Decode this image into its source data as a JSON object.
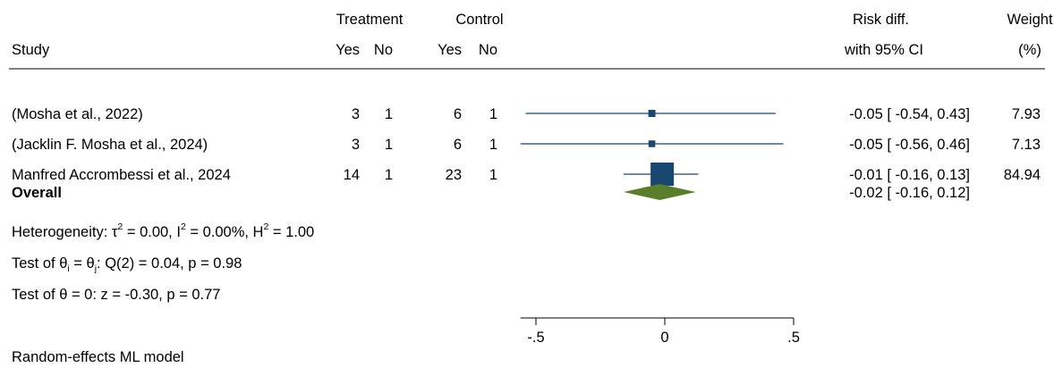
{
  "header": {
    "study": "Study",
    "treatment": "Treatment",
    "control": "Control",
    "yes": "Yes",
    "no": "No",
    "risk_diff": "Risk diff.",
    "ci": "with 95% CI",
    "weight": "Weight",
    "weight_unit": "(%)"
  },
  "studies": [
    {
      "name": "(Mosha et al., 2022)",
      "t_yes": "3",
      "t_no": "1",
      "c_yes": "6",
      "c_no": "1",
      "ci_text": "-0.05 [ -0.54,  0.43]",
      "weight": "7.93",
      "est": -0.05,
      "lo": -0.54,
      "hi": 0.43,
      "w": 7.93
    },
    {
      "name": "(Jacklin F. Mosha et al., 2024)",
      "t_yes": "3",
      "t_no": "1",
      "c_yes": "6",
      "c_no": "1",
      "ci_text": "-0.05 [ -0.56,  0.46]",
      "weight": "7.13",
      "est": -0.05,
      "lo": -0.56,
      "hi": 0.46,
      "w": 7.13
    },
    {
      "name": "Manfred Accrombessi et al., 2024",
      "t_yes": "14",
      "t_no": "1",
      "c_yes": "23",
      "c_no": "1",
      "ci_text": "-0.01 [ -0.16,  0.13]",
      "weight": "84.94",
      "est": -0.01,
      "lo": -0.16,
      "hi": 0.13,
      "w": 84.94
    }
  ],
  "overall": {
    "label": "Overall",
    "ci_text": "-0.02 [ -0.16,  0.12]",
    "est": -0.02,
    "lo": -0.16,
    "hi": 0.12
  },
  "stats": {
    "het_prefix": "Heterogeneity: τ",
    "het_tau_sup": "2",
    "het_mid": " = 0.00, I",
    "het_i_sup": "2",
    "het_mid2": " = 0.00%, H",
    "het_h_sup": "2",
    "het_end": " = 1.00",
    "test1_a": "Test of θ",
    "test1_sub_i": "i",
    "test1_b": " = θ",
    "test1_sub_j": "j",
    "test1_c": ": Q(2) = 0.04, p = 0.98",
    "test2": "Test of θ = 0: z = -0.30, p = 0.77"
  },
  "axis": {
    "ticks": [
      -0.5,
      0,
      0.5
    ],
    "tick_labels": [
      "-.5",
      "0",
      ".5"
    ]
  },
  "footnote": "Random-effects ML model",
  "colors": {
    "marker": "#1a476f",
    "line": "#1a476f",
    "diamond": "#5a7d2a"
  },
  "chart_data": {
    "type": "forest",
    "xlim": [
      -0.56,
      0.5
    ],
    "series": [
      {
        "study": "(Mosha et al., 2022)",
        "estimate": -0.05,
        "ci": [
          -0.54,
          0.43
        ],
        "weight_pct": 7.93
      },
      {
        "study": "(Jacklin F. Mosha et al., 2024)",
        "estimate": -0.05,
        "ci": [
          -0.56,
          0.46
        ],
        "weight_pct": 7.13
      },
      {
        "study": "Manfred Accrombessi et al., 2024",
        "estimate": -0.01,
        "ci": [
          -0.16,
          0.13
        ],
        "weight_pct": 84.94
      }
    ],
    "overall": {
      "estimate": -0.02,
      "ci": [
        -0.16,
        0.12
      ]
    },
    "x_ticks": [
      -0.5,
      0,
      0.5
    ],
    "model": "Random-effects ML model"
  }
}
